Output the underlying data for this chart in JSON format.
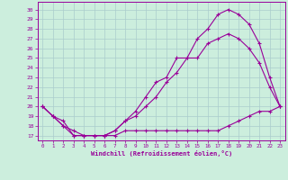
{
  "xlabel": "Windchill (Refroidissement éolien,°C)",
  "background_color": "#cceedd",
  "grid_color": "#aacccc",
  "line_color": "#990099",
  "x_ticks": [
    0,
    1,
    2,
    3,
    4,
    5,
    6,
    7,
    8,
    9,
    10,
    11,
    12,
    13,
    14,
    15,
    16,
    17,
    18,
    19,
    20,
    21,
    22,
    23
  ],
  "y_ticks": [
    17,
    18,
    19,
    20,
    21,
    22,
    23,
    24,
    25,
    26,
    27,
    28,
    29,
    30
  ],
  "ylim": [
    16.5,
    30.8
  ],
  "xlim": [
    -0.5,
    23.5
  ],
  "line1_x": [
    0,
    1,
    2,
    3,
    4,
    5,
    6,
    7,
    8,
    9,
    10,
    11,
    12,
    13,
    14,
    15,
    16,
    17,
    18,
    19,
    20,
    21,
    22,
    23
  ],
  "line1_y": [
    20,
    19,
    18.5,
    17,
    17,
    17,
    17,
    17,
    17.5,
    17.5,
    17.5,
    17.5,
    17.5,
    17.5,
    17.5,
    17.5,
    17.5,
    17.5,
    18,
    18.5,
    19,
    19.5,
    19.5,
    20
  ],
  "line2_x": [
    0,
    1,
    2,
    3,
    4,
    5,
    6,
    7,
    8,
    9,
    10,
    11,
    12,
    13,
    14,
    15,
    16,
    17,
    18,
    19,
    20,
    21,
    22,
    23
  ],
  "line2_y": [
    20,
    19,
    18,
    17.5,
    17,
    17,
    17,
    17.5,
    18.5,
    19,
    20,
    21,
    22.5,
    23.5,
    25,
    25,
    26.5,
    27,
    27.5,
    27,
    26,
    24.5,
    22,
    20
  ],
  "line3_x": [
    0,
    1,
    2,
    3,
    4,
    5,
    6,
    7,
    8,
    9,
    10,
    11,
    12,
    13,
    14,
    15,
    16,
    17,
    18,
    19,
    20,
    21,
    22,
    23
  ],
  "line3_y": [
    20,
    19,
    18,
    17,
    17,
    17,
    17,
    17.5,
    18.5,
    19.5,
    21,
    22.5,
    23,
    25,
    25,
    27,
    28,
    29.5,
    30,
    29.5,
    28.5,
    26.5,
    23,
    20
  ]
}
